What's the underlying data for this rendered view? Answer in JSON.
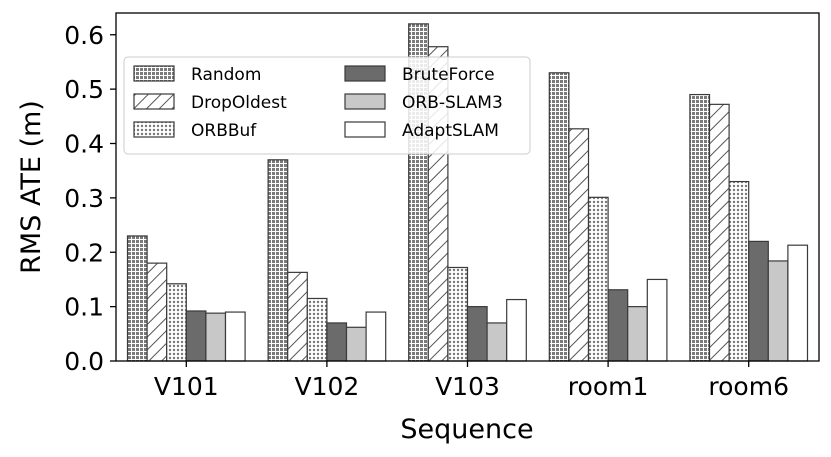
{
  "chart_data": {
    "type": "bar",
    "title": "",
    "xlabel": "Sequence",
    "ylabel": "RMS ATE (m)",
    "ylim": [
      0,
      0.64
    ],
    "yticks": [
      0.0,
      0.1,
      0.2,
      0.3,
      0.4,
      0.5,
      0.6
    ],
    "ytick_labels": [
      "0.0",
      "0.1",
      "0.2",
      "0.3",
      "0.4",
      "0.5",
      "0.6"
    ],
    "categories": [
      "V101",
      "V102",
      "V103",
      "room1",
      "room6"
    ],
    "series": [
      {
        "name": "Random",
        "values": [
          0.23,
          0.37,
          0.62,
          0.53,
          0.49
        ],
        "fill": "#8c8c8c",
        "pattern": "grid"
      },
      {
        "name": "DropOldest",
        "values": [
          0.18,
          0.163,
          0.578,
          0.427,
          0.472
        ],
        "fill": "#ffffff",
        "pattern": "diagonal-hatch"
      },
      {
        "name": "ORBBuf",
        "values": [
          0.142,
          0.115,
          0.172,
          0.301,
          0.33
        ],
        "fill": "#ffffff",
        "pattern": "dots"
      },
      {
        "name": "BruteForce",
        "values": [
          0.092,
          0.07,
          0.1,
          0.131,
          0.22
        ],
        "fill": "#6b6b6b",
        "pattern": "solid"
      },
      {
        "name": "ORB-SLAM3",
        "values": [
          0.088,
          0.062,
          0.07,
          0.1,
          0.184
        ],
        "fill": "#c8c8c8",
        "pattern": "solid"
      },
      {
        "name": "AdaptSLAM",
        "values": [
          0.09,
          0.09,
          0.113,
          0.15,
          0.213
        ],
        "fill": "#ffffff",
        "pattern": "solid"
      }
    ],
    "legend": {
      "placement": "top-left",
      "columns": 2,
      "order": [
        "Random",
        "BruteForce",
        "DropOldest",
        "ORB-SLAM3",
        "ORBBuf",
        "AdaptSLAM"
      ]
    },
    "grid": false
  }
}
